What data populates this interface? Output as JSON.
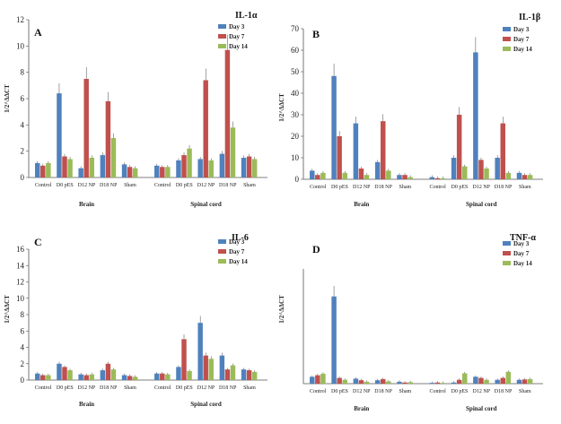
{
  "figure": {
    "colors": {
      "day3": "#4f81bd",
      "day7": "#c0504d",
      "day14": "#9bbb59"
    },
    "ylabel": "1/2^ΔΔCT"
  },
  "chart_data": [
    {
      "panel": "A",
      "title": "IL-1α",
      "type": "bar",
      "ylim": [
        0,
        12
      ],
      "yticks": [
        0,
        2,
        4,
        6,
        8,
        10,
        12
      ],
      "groups": [
        "Brain",
        "Spinal cord"
      ],
      "categories": [
        "Control",
        "D0 pES",
        "D12 NP",
        "D18 NP",
        "Sham"
      ],
      "series": [
        {
          "name": "Day 3",
          "brain": [
            1.1,
            6.4,
            0.7,
            1.7,
            1.0
          ],
          "spinal": [
            0.9,
            1.3,
            1.4,
            1.8,
            1.5
          ]
        },
        {
          "name": "Day 7",
          "brain": [
            0.9,
            1.6,
            7.5,
            5.8,
            0.8
          ],
          "spinal": [
            0.8,
            1.7,
            7.4,
            9.7,
            1.6
          ]
        },
        {
          "name": "Day 14",
          "brain": [
            1.1,
            1.4,
            1.5,
            3.0,
            0.7
          ],
          "spinal": [
            0.8,
            2.2,
            1.3,
            3.8,
            1.4
          ]
        }
      ]
    },
    {
      "panel": "B",
      "title": "IL-1β",
      "type": "bar",
      "ylim": [
        0,
        70
      ],
      "yticks": [
        0,
        10,
        20,
        30,
        40,
        50,
        60,
        70
      ],
      "groups": [
        "Brain",
        "Spinal cord"
      ],
      "categories": [
        "Control",
        "D0 pES",
        "D12 NP",
        "D18 NP",
        "Sham"
      ],
      "series": [
        {
          "name": "Day 3",
          "brain": [
            4,
            48,
            26,
            8,
            2
          ],
          "spinal": [
            1,
            10,
            59,
            10,
            3
          ]
        },
        {
          "name": "Day 7",
          "brain": [
            2,
            20,
            5,
            27,
            2
          ],
          "spinal": [
            0.5,
            30,
            9,
            26,
            2
          ]
        },
        {
          "name": "Day 14",
          "brain": [
            3,
            3,
            2,
            4,
            1
          ],
          "spinal": [
            0.5,
            6,
            5,
            3,
            2
          ]
        }
      ]
    },
    {
      "panel": "C",
      "title": "IL-6",
      "type": "bar",
      "ylim": [
        0,
        16
      ],
      "yticks": [
        0,
        2,
        4,
        6,
        8,
        10,
        12,
        14,
        16
      ],
      "groups": [
        "Brain",
        "Spinal cord"
      ],
      "categories": [
        "Control",
        "D0 pES",
        "D12 NP",
        "D18 NP",
        "Sham"
      ],
      "series": [
        {
          "name": "Day 3",
          "brain": [
            0.8,
            2.0,
            0.7,
            1.2,
            0.6
          ],
          "spinal": [
            0.8,
            1.6,
            7.0,
            3.0,
            1.3
          ]
        },
        {
          "name": "Day 7",
          "brain": [
            0.6,
            1.6,
            0.6,
            2.0,
            0.5
          ],
          "spinal": [
            0.8,
            5.0,
            3.0,
            1.3,
            1.2
          ]
        },
        {
          "name": "Day 14",
          "brain": [
            0.6,
            1.2,
            0.7,
            1.3,
            0.4
          ],
          "spinal": [
            0.7,
            1.1,
            2.6,
            1.8,
            1.0
          ]
        }
      ]
    },
    {
      "panel": "D",
      "title": "TNF-α",
      "type": "bar",
      "ylim": [
        0,
        30
      ],
      "yticks": [],
      "groups": [
        "Brain",
        "Spinal cord"
      ],
      "categories": [
        "Control",
        "D0 pES",
        "D12 NP",
        "D18 NP",
        "Sham"
      ],
      "series": [
        {
          "name": "Day 3",
          "brain": [
            1.8,
            22.8,
            1.3,
            0.9,
            0.5
          ],
          "spinal": [
            0.2,
            0.3,
            1.8,
            1.0,
            1.0
          ]
        },
        {
          "name": "Day 7",
          "brain": [
            2.2,
            1.5,
            0.9,
            1.2,
            0.3
          ],
          "spinal": [
            0.3,
            1.0,
            1.5,
            1.5,
            1.1
          ]
        },
        {
          "name": "Day 14",
          "brain": [
            2.6,
            1.0,
            0.5,
            0.6,
            0.4
          ],
          "spinal": [
            0.2,
            2.7,
            1.0,
            3.1,
            1.2
          ]
        }
      ]
    }
  ]
}
